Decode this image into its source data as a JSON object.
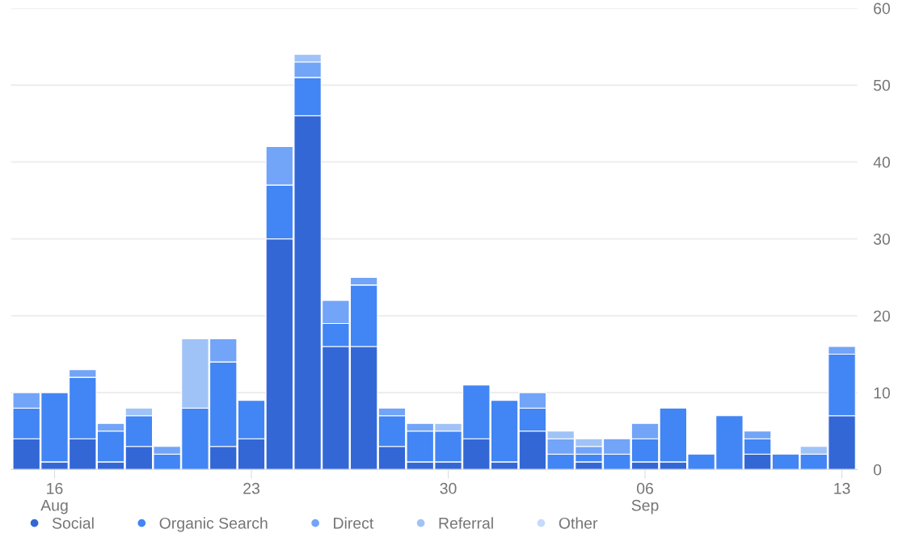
{
  "chart_data": {
    "type": "bar",
    "stacked": true,
    "categories": [
      null,
      "16\nAug",
      null,
      null,
      null,
      null,
      null,
      null,
      "23",
      null,
      null,
      null,
      null,
      null,
      null,
      "30",
      null,
      null,
      null,
      null,
      null,
      null,
      "06\nSep",
      null,
      null,
      null,
      null,
      null,
      null,
      "13"
    ],
    "series": [
      {
        "name": "Social",
        "color": "#3367d6",
        "values": [
          4,
          1,
          4,
          1,
          3,
          0,
          0,
          3,
          4,
          30,
          46,
          16,
          16,
          3,
          1,
          1,
          4,
          1,
          5,
          0,
          1,
          0,
          1,
          1,
          0,
          0,
          2,
          0,
          0,
          7
        ]
      },
      {
        "name": "Organic Search",
        "color": "#4285f4",
        "values": [
          4,
          9,
          8,
          4,
          4,
          2,
          8,
          11,
          5,
          7,
          5,
          3,
          8,
          4,
          4,
          4,
          7,
          8,
          3,
          2,
          1,
          2,
          3,
          7,
          2,
          7,
          2,
          2,
          2,
          8
        ]
      },
      {
        "name": "Direct",
        "color": "#72a4f7",
        "values": [
          2,
          0,
          1,
          1,
          0,
          1,
          0,
          3,
          0,
          5,
          2,
          3,
          1,
          1,
          1,
          0,
          0,
          0,
          2,
          2,
          1,
          2,
          2,
          0,
          0,
          0,
          1,
          0,
          0,
          1
        ]
      },
      {
        "name": "Referral",
        "color": "#a0c3f7",
        "values": [
          0,
          0,
          0,
          0,
          1,
          0,
          9,
          0,
          0,
          0,
          1,
          0,
          0,
          0,
          0,
          1,
          0,
          0,
          0,
          1,
          1,
          0,
          0,
          0,
          0,
          0,
          0,
          0,
          1,
          0
        ]
      },
      {
        "name": "Other",
        "color": "#c6dafc",
        "values": [
          0,
          0,
          0,
          0,
          0,
          0,
          0,
          0,
          0,
          0,
          0,
          0,
          0,
          0,
          0,
          0,
          0,
          0,
          0,
          0,
          0,
          0,
          0,
          0,
          0,
          0,
          0,
          0,
          0,
          0
        ]
      }
    ],
    "ylim": [
      0,
      60
    ],
    "yticks": [
      0,
      10,
      20,
      30,
      40,
      50,
      60
    ],
    "grid": "y",
    "legend": "bottom left",
    "marker": "circle"
  }
}
